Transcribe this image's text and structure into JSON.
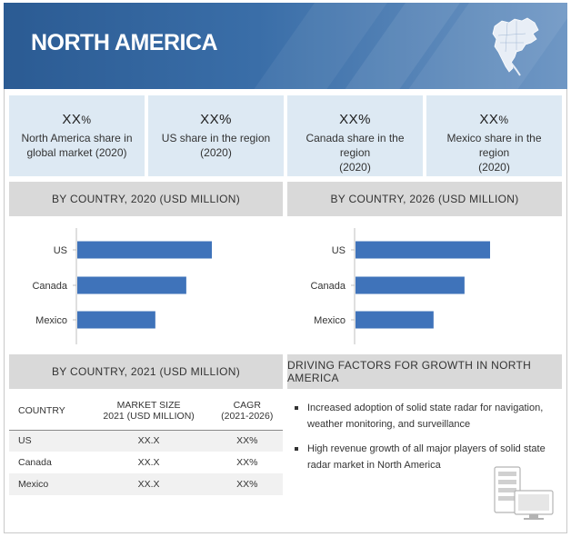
{
  "header": {
    "title": "NORTH AMERICA",
    "map_icon": "north-america-map-icon"
  },
  "kpis": [
    {
      "value": "XX",
      "unit": "%",
      "label_line1": "North America share in",
      "label_line2": "global market (2020)"
    },
    {
      "value": "XX",
      "unit": "%",
      "label_line1": "US share in the region",
      "label_line2": "(2020)"
    },
    {
      "value": "XX",
      "unit": "%",
      "label_line1": "Canada share in the region",
      "label_line2": "(2020)"
    },
    {
      "value": "XX",
      "unit": "%",
      "label_line1": "Mexico share in the region",
      "label_line2": "(2020)"
    }
  ],
  "sections": {
    "chart_2020_title": "BY COUNTRY, 2020 (USD MILLION)",
    "chart_2026_title": "BY COUNTRY, 2026 (USD MILLION)",
    "table_title": "BY COUNTRY, 2021 (USD MILLION)",
    "factors_title": "DRIVING FACTORS FOR GROWTH IN NORTH AMERICA"
  },
  "chart_data": [
    {
      "type": "bar",
      "orientation": "horizontal",
      "title": "BY COUNTRY, 2020 (USD MILLION)",
      "categories": [
        "US",
        "Canada",
        "Mexico"
      ],
      "values": [
        100,
        81,
        58
      ],
      "value_scale": "relative (no axis values printed)",
      "grid": false,
      "color": "#3f73ba"
    },
    {
      "type": "bar",
      "orientation": "horizontal",
      "title": "BY COUNTRY, 2026 (USD MILLION)",
      "categories": [
        "US",
        "Canada",
        "Mexico"
      ],
      "values": [
        100,
        81,
        58
      ],
      "value_scale": "relative (no axis values printed)",
      "grid": false,
      "color": "#3f73ba"
    }
  ],
  "table": {
    "headers": {
      "country": "COUNTRY",
      "size_line1": "MARKET SIZE",
      "size_line2": "2021 (USD MILLION)",
      "cagr_line1": "CAGR",
      "cagr_line2": "(2021-2026)"
    },
    "rows": [
      {
        "country": "US",
        "size": "XX.X",
        "cagr": "XX%"
      },
      {
        "country": "Canada",
        "size": "XX.X",
        "cagr": "XX%"
      },
      {
        "country": "Mexico",
        "size": "XX.X",
        "cagr": "XX%"
      }
    ]
  },
  "factors": [
    "Increased adoption of solid state radar for navigation, weather monitoring, and surveillance",
    "High revenue growth of all major players of solid state radar market in North America"
  ],
  "icons": {
    "server": "server-monitor-icon"
  }
}
